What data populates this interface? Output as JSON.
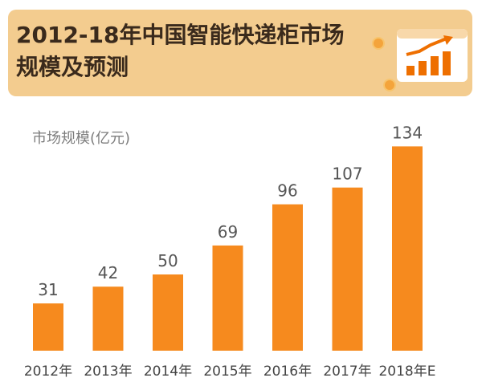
{
  "header": {
    "title": "2012-18年中国智能快递柜市场规模及预测",
    "icon": "bar-chart-growth-icon",
    "accent": "#ee6f00",
    "banner_color": "#f3cc8f"
  },
  "chart_data": {
    "type": "bar",
    "title": "2012-18年中国智能快递柜市场规模及预测",
    "ylabel": "市场规模(亿元)",
    "xlabel": "",
    "categories": [
      "2012年",
      "2013年",
      "2014年",
      "2015年",
      "2016年",
      "2017年",
      "2018年E"
    ],
    "values": [
      31,
      42,
      50,
      69,
      96,
      107,
      134
    ],
    "bar_color": "#f68a1e",
    "grid": false,
    "legend": "none"
  }
}
